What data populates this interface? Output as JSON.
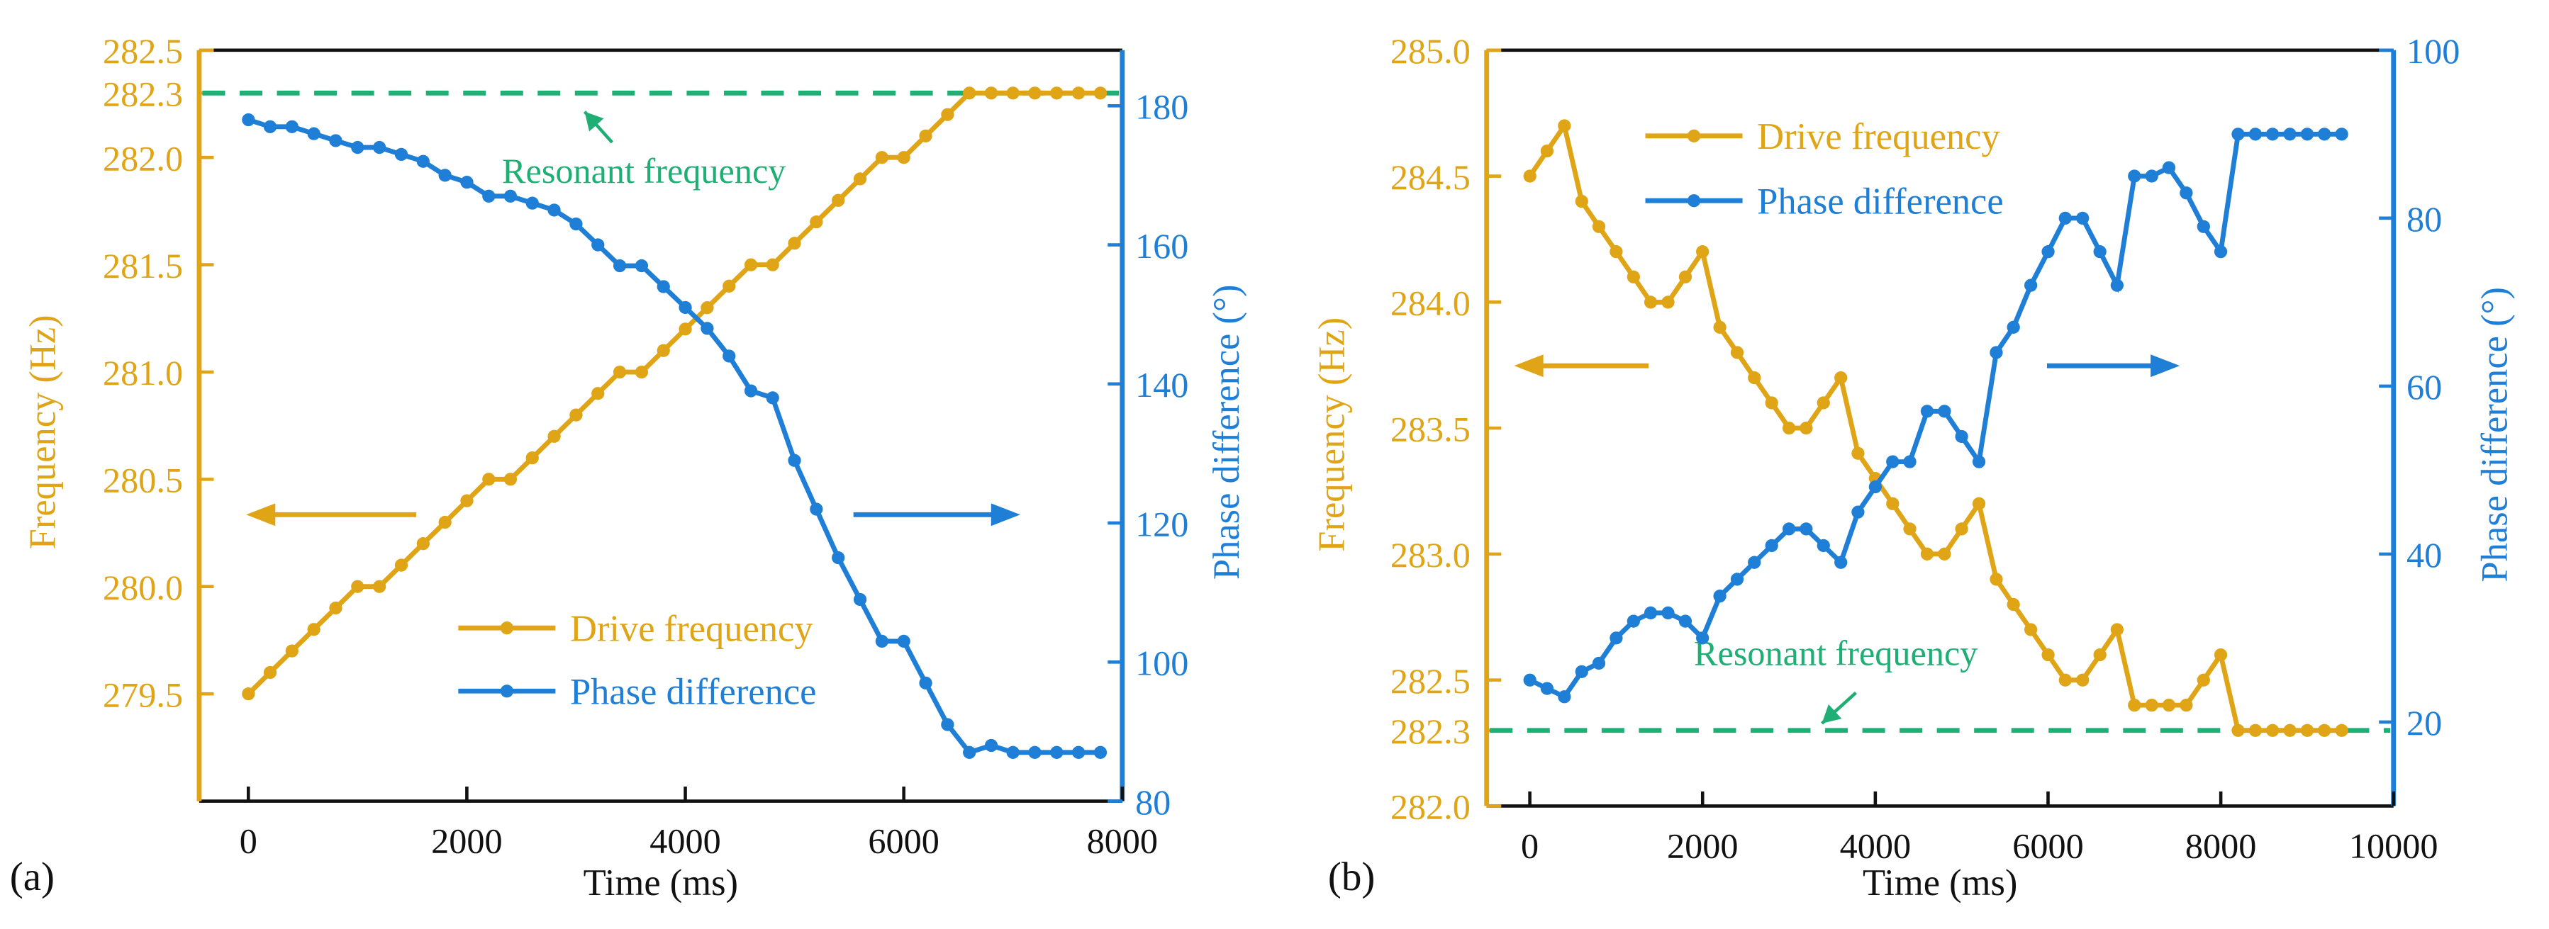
{
  "colors": {
    "drive": "#e0a516",
    "phase": "#1f7fd6",
    "resonant": "#1fae74",
    "axis": "#111111"
  },
  "chart_data": [
    {
      "type": "line",
      "panel_label": "(a)",
      "xlabel": "Time (ms)",
      "ylabel_left": "Frequency (Hz)",
      "ylabel_right": "Phase difference (°)",
      "xlim": [
        -450,
        8000
      ],
      "ylim_left": [
        279.0,
        282.5
      ],
      "ylim_right": [
        80,
        188
      ],
      "x_ticks": [
        0,
        2000,
        4000,
        6000,
        8000
      ],
      "x_tick_labels": [
        "0",
        "2000",
        "4000",
        "6000",
        "8000"
      ],
      "y_left_ticks": [
        279.5,
        280.0,
        280.5,
        281.0,
        281.5,
        282.0,
        282.3,
        282.5
      ],
      "y_left_tick_labels": [
        "279.5",
        "280.0",
        "280.5",
        "281.0",
        "281.5",
        "282.0",
        "282.3",
        "282.5"
      ],
      "y_right_ticks": [
        80,
        100,
        120,
        140,
        160,
        180
      ],
      "y_right_tick_labels": [
        "80",
        "100",
        "120",
        "140",
        "160",
        "180"
      ],
      "resonant": {
        "value": 282.3,
        "label": "Resonant frequency"
      },
      "legend": {
        "placement": "bottom-center",
        "drive_label": "Drive frequency",
        "phase_label": "Phase difference"
      },
      "series": [
        {
          "name": "Drive frequency",
          "axis": "left",
          "x": [
            0,
            200,
            400,
            600,
            800,
            1000,
            1200,
            1400,
            1600,
            1800,
            2000,
            2200,
            2400,
            2600,
            2800,
            3000,
            3200,
            3400,
            3600,
            3800,
            4000,
            4200,
            4400,
            4600,
            4800,
            5000,
            5200,
            5400,
            5600,
            5800,
            6000,
            6200,
            6400,
            6600,
            6800,
            7000,
            7200,
            7400,
            7600,
            7800
          ],
          "y": [
            279.5,
            279.6,
            279.7,
            279.8,
            279.9,
            280.0,
            280.0,
            280.1,
            280.2,
            280.3,
            280.4,
            280.5,
            280.5,
            280.6,
            280.7,
            280.8,
            280.9,
            281.0,
            281.0,
            281.1,
            281.2,
            281.3,
            281.4,
            281.5,
            281.5,
            281.6,
            281.7,
            281.8,
            281.9,
            282.0,
            282.0,
            282.1,
            282.2,
            282.3,
            282.3,
            282.3,
            282.3,
            282.3,
            282.3,
            282.3
          ]
        },
        {
          "name": "Phase difference",
          "axis": "right",
          "x": [
            0,
            200,
            400,
            600,
            800,
            1000,
            1200,
            1400,
            1600,
            1800,
            2000,
            2200,
            2400,
            2600,
            2800,
            3000,
            3200,
            3400,
            3600,
            3800,
            4000,
            4200,
            4400,
            4600,
            4800,
            5000,
            5200,
            5400,
            5600,
            5800,
            6000,
            6200,
            6400,
            6600,
            6800,
            7000,
            7200,
            7400,
            7600,
            7800
          ],
          "y": [
            178,
            177,
            177,
            176,
            175,
            174,
            174,
            173,
            172,
            170,
            169,
            167,
            167,
            166,
            165,
            163,
            160,
            157,
            157,
            154,
            151,
            148,
            144,
            139,
            138,
            129,
            122,
            115,
            109,
            103,
            103,
            97,
            91,
            87,
            88,
            87,
            87,
            87,
            87,
            87
          ]
        }
      ]
    },
    {
      "type": "line",
      "panel_label": "(b)",
      "xlabel": "Time (ms)",
      "ylabel_left": "Frequency (Hz)",
      "ylabel_right": "Phase difference (°)",
      "xlim": [
        -500,
        10000
      ],
      "ylim_left": [
        282.0,
        285.0
      ],
      "ylim_right": [
        10,
        100
      ],
      "x_ticks": [
        0,
        2000,
        4000,
        6000,
        8000,
        10000
      ],
      "x_tick_labels": [
        "0",
        "2000",
        "4000",
        "6000",
        "8000",
        "10000"
      ],
      "y_left_ticks": [
        282.0,
        282.3,
        282.5,
        283.0,
        283.5,
        284.0,
        284.5,
        285.0
      ],
      "y_left_tick_labels": [
        "282.0",
        "282.3",
        "282.5",
        "283.0",
        "283.5",
        "284.0",
        "284.5",
        "285.0"
      ],
      "y_right_ticks": [
        20,
        40,
        60,
        80,
        100
      ],
      "y_right_tick_labels": [
        "20",
        "40",
        "60",
        "80",
        "100"
      ],
      "resonant": {
        "value": 282.3,
        "label": "Resonant frequency"
      },
      "legend": {
        "placement": "top-left",
        "drive_label": "Drive frequency",
        "phase_label": "Phase difference"
      },
      "series": [
        {
          "name": "Drive frequency",
          "axis": "left",
          "x": [
            0,
            200,
            400,
            600,
            800,
            1000,
            1200,
            1400,
            1600,
            1800,
            2000,
            2200,
            2400,
            2600,
            2800,
            3000,
            3200,
            3400,
            3600,
            3800,
            4000,
            4200,
            4400,
            4600,
            4800,
            5000,
            5200,
            5400,
            5600,
            5800,
            6000,
            6200,
            6400,
            6600,
            6800,
            7000,
            7200,
            7400,
            7600,
            7800,
            8000,
            8200,
            8400,
            8600,
            8800,
            9000,
            9200,
            9400
          ],
          "y": [
            284.5,
            284.6,
            284.7,
            284.4,
            284.3,
            284.2,
            284.1,
            284.0,
            284.0,
            284.1,
            284.2,
            283.9,
            283.8,
            283.7,
            283.6,
            283.5,
            283.5,
            283.6,
            283.7,
            283.4,
            283.3,
            283.2,
            283.1,
            283.0,
            283.0,
            283.1,
            283.2,
            282.9,
            282.8,
            282.7,
            282.6,
            282.5,
            282.5,
            282.6,
            282.7,
            282.4,
            282.4,
            282.4,
            282.4,
            282.5,
            282.6,
            282.3,
            282.3,
            282.3,
            282.3,
            282.3,
            282.3,
            282.3
          ]
        },
        {
          "name": "Phase difference",
          "axis": "right",
          "x": [
            0,
            200,
            400,
            600,
            800,
            1000,
            1200,
            1400,
            1600,
            1800,
            2000,
            2200,
            2400,
            2600,
            2800,
            3000,
            3200,
            3400,
            3600,
            3800,
            4000,
            4200,
            4400,
            4600,
            4800,
            5000,
            5200,
            5400,
            5600,
            5800,
            6000,
            6200,
            6400,
            6600,
            6800,
            7000,
            7200,
            7400,
            7600,
            7800,
            8000,
            8200,
            8400,
            8600,
            8800,
            9000,
            9200,
            9400
          ],
          "y": [
            25,
            24,
            23,
            26,
            27,
            30,
            32,
            33,
            33,
            32,
            30,
            35,
            37,
            39,
            41,
            43,
            43,
            41,
            39,
            45,
            48,
            51,
            51,
            57,
            57,
            54,
            51,
            64,
            67,
            72,
            76,
            80,
            80,
            76,
            72,
            85,
            85,
            86,
            83,
            79,
            76,
            90,
            90,
            90,
            90,
            90,
            90,
            90
          ]
        }
      ]
    }
  ]
}
